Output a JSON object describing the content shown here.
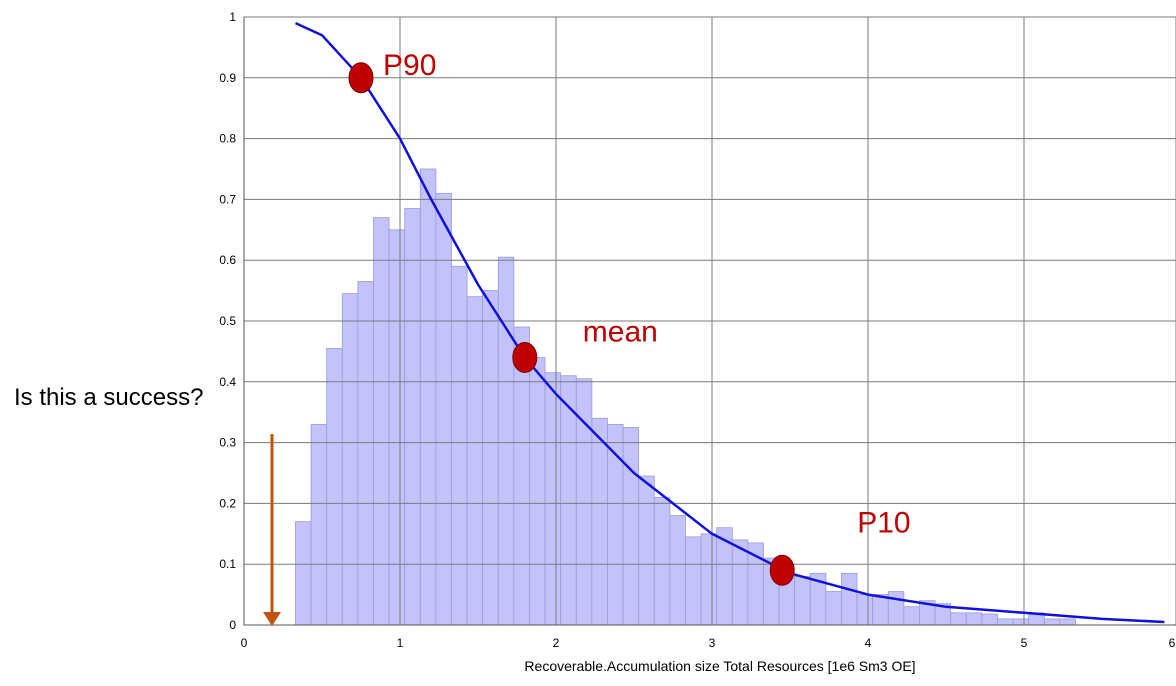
{
  "chart_data": {
    "type": "bar",
    "xlabel": "Recoverable.Accumulation size Total Resources [1e6 Sm3 OE]",
    "ylabel": "",
    "xlim": [
      0,
      6
    ],
    "ylim": [
      0,
      1
    ],
    "grid": true,
    "x_ticks": [
      "0",
      "1",
      "2",
      "3",
      "4",
      "5",
      "6"
    ],
    "y_ticks": [
      "0",
      "0.1",
      "0.2",
      "0.3",
      "0.4",
      "0.5",
      "0.6",
      "0.7",
      "0.8",
      "0.9",
      "1"
    ],
    "histogram": {
      "bin_width": 0.1,
      "x_start": 0.33,
      "values": [
        0.17,
        0.33,
        0.455,
        0.545,
        0.565,
        0.67,
        0.65,
        0.685,
        0.75,
        0.71,
        0.59,
        0.54,
        0.55,
        0.605,
        0.49,
        0.44,
        0.415,
        0.41,
        0.405,
        0.34,
        0.33,
        0.325,
        0.245,
        0.21,
        0.18,
        0.145,
        0.15,
        0.16,
        0.14,
        0.135,
        0.11,
        0.08,
        0.08,
        0.085,
        0.055,
        0.085,
        0.05,
        0.05,
        0.055,
        0.03,
        0.04,
        0.035,
        0.02,
        0.02,
        0.018,
        0.01,
        0.01,
        0.02,
        0.01,
        0.01
      ]
    },
    "exceedance_curve": {
      "x": [
        0.33,
        0.5,
        0.75,
        1.0,
        1.2,
        1.5,
        1.8,
        2.0,
        2.5,
        3.0,
        3.5,
        4.0,
        4.5,
        5.0,
        5.5,
        5.9
      ],
      "y": [
        0.99,
        0.97,
        0.9,
        0.8,
        0.7,
        0.56,
        0.44,
        0.38,
        0.25,
        0.15,
        0.085,
        0.05,
        0.03,
        0.02,
        0.01,
        0.005
      ]
    },
    "markers": [
      {
        "label": "P90",
        "x": 0.75,
        "y": 0.9
      },
      {
        "label": "mean",
        "x": 1.8,
        "y": 0.44
      },
      {
        "label": "P10",
        "x": 3.45,
        "y": 0.09
      }
    ],
    "colors": {
      "bars_fill": "#c3c3fb",
      "bars_stroke": "#9a9ad6",
      "curve": "#1010e0",
      "marker": "#c00000",
      "marker_label": "#c00000",
      "arrow": "#c0540e",
      "grid": "#7a7a7a"
    }
  },
  "annotation": {
    "question": "Is this a success?"
  }
}
